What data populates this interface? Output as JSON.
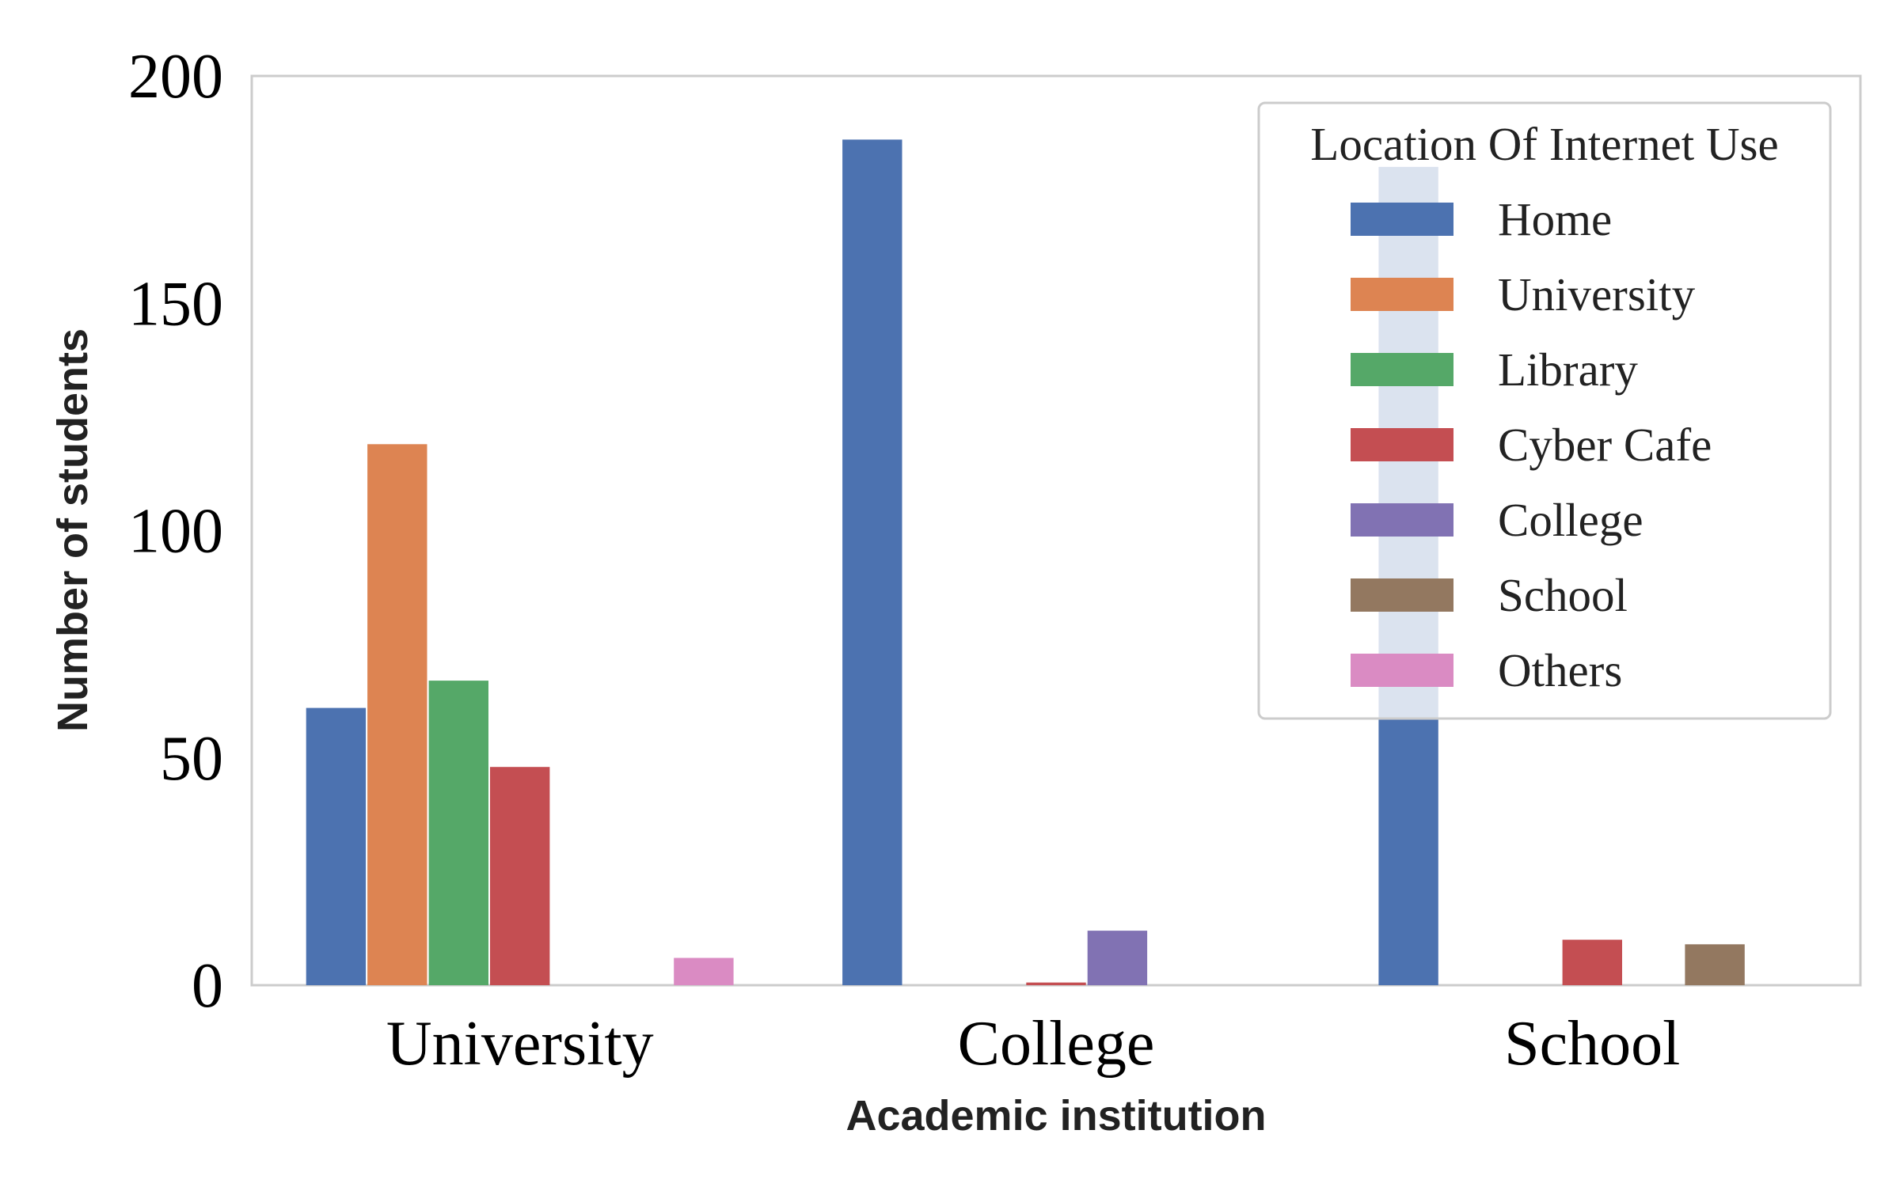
{
  "chart_data": {
    "type": "bar",
    "categories": [
      "University",
      "College",
      "School"
    ],
    "series": [
      {
        "name": "Home",
        "color": "#4c72b0",
        "values": [
          61,
          186,
          180
        ]
      },
      {
        "name": "University",
        "color": "#dd8452",
        "values": [
          119,
          0,
          0
        ]
      },
      {
        "name": "Library",
        "color": "#55a868",
        "values": [
          67,
          0,
          0
        ]
      },
      {
        "name": "Cyber Cafe",
        "color": "#c44e52",
        "values": [
          48,
          0.6,
          10
        ]
      },
      {
        "name": "College",
        "color": "#8172b3",
        "values": [
          0,
          12,
          0
        ]
      },
      {
        "name": "School",
        "color": "#937860",
        "values": [
          0,
          0,
          9
        ]
      },
      {
        "name": "Others",
        "color": "#da8bc3",
        "values": [
          6,
          0,
          0
        ]
      }
    ],
    "title": "",
    "xlabel": "Academic institution",
    "ylabel": "Number of students",
    "ylim": [
      0,
      200
    ],
    "yticks": [
      0,
      50,
      100,
      150,
      200
    ],
    "grid": false,
    "legend": {
      "title": "Location Of Internet Use",
      "placement": "top-right"
    }
  }
}
